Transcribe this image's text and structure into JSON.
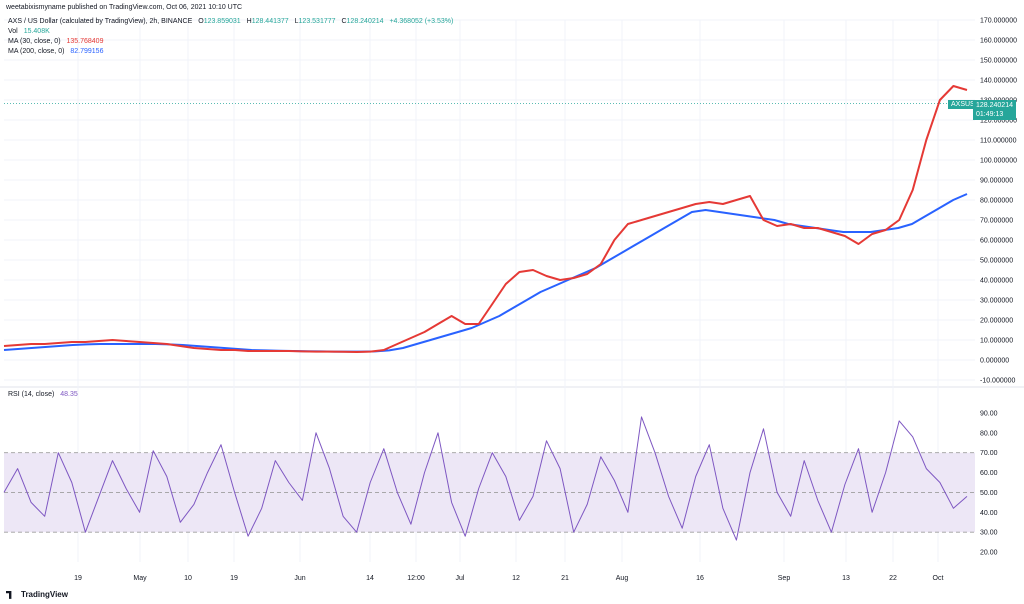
{
  "header": {
    "published": "weetabixismyname published on TradingView.com, Oct 06, 2021 10:10 UTC"
  },
  "legend": {
    "symbol": "AXS / US Dollar (calculated by TradingView), 2h, BINANCE",
    "o_label": "O",
    "o": "123.859031",
    "h_label": "H",
    "h": "128.441377",
    "l_label": "L",
    "l": "123.531777",
    "c_label": "C",
    "c": "128.240214",
    "change": "+4.368052 (+3.53%)",
    "vol_label": "Vol",
    "vol": "15.408K",
    "ma30_label": "MA (30, close, 0)",
    "ma30": "135.768409",
    "ma200_label": "MA (200, close, 0)",
    "ma200": "82.799156",
    "rsi_label": "RSI (14, close)",
    "rsi": "48.35"
  },
  "price_tag": {
    "symbol": "AXSUSD",
    "price": "128.240214",
    "countdown": "01:49:13"
  },
  "branding": {
    "logo": "TradingView"
  },
  "colors": {
    "up": "#26a69a",
    "down": "#ef5350",
    "ma30": "#e53935",
    "ma200": "#2962ff",
    "rsi": "#7e57c2",
    "rsi_band": "#ede7f6",
    "grid": "#f0f3fa"
  },
  "chart_data": [
    {
      "type": "line",
      "title": "AXS / US Dollar (calculated by TradingView), 2h, BINANCE",
      "y_ticks": [
        "170.000000",
        "160.000000",
        "150.000000",
        "140.000000",
        "130.000000",
        "120.000000",
        "110.000000",
        "100.000000",
        "90.000000",
        "80.000000",
        "70.000000",
        "60.000000",
        "50.000000",
        "40.000000",
        "30.000000",
        "20.000000",
        "10.000000",
        "0.000000",
        "-10.000000"
      ],
      "ylim": [
        -10,
        170
      ],
      "x_ticks": [
        "19",
        "May",
        "10",
        "19",
        "Jun",
        "14",
        "12:00",
        "Jul",
        "12",
        "21",
        "Aug",
        "16",
        "Sep",
        "13",
        "22",
        "Oct"
      ],
      "series": [
        {
          "name": "MA (30, close, 0)",
          "values": [
            7,
            7.5,
            8,
            8,
            8.5,
            9,
            9,
            9.5,
            10,
            9.5,
            9,
            8.5,
            8,
            7,
            6,
            5.5,
            5,
            5,
            4.5,
            4.5,
            4.5,
            4.5,
            4.3,
            4.2,
            4.2,
            4.1,
            4,
            4.2,
            5,
            8,
            11,
            14,
            18,
            22,
            18,
            18,
            28,
            38,
            44,
            45,
            42,
            40,
            41,
            43,
            48,
            60,
            68,
            70,
            72,
            74,
            76,
            78,
            79,
            78,
            80,
            82,
            70,
            67,
            68,
            66,
            66,
            64,
            62,
            58,
            63,
            65,
            70,
            85,
            110,
            130,
            137,
            135
          ]
        },
        {
          "name": "MA (200, close, 0)",
          "values": [
            5,
            5.5,
            6,
            6.5,
            7,
            7.5,
            7.8,
            8,
            8,
            8,
            8,
            8,
            7.8,
            7.5,
            7,
            6.5,
            6,
            5.5,
            5,
            4.8,
            4.6,
            4.5,
            4.4,
            4.3,
            4.2,
            4.2,
            4.2,
            4.3,
            4.8,
            6,
            8,
            10,
            12,
            14,
            16,
            19,
            22,
            26,
            30,
            34,
            37,
            40,
            43,
            46,
            50,
            54,
            58,
            62,
            66,
            70,
            74,
            75,
            74,
            73,
            72,
            71,
            70,
            68,
            67,
            66,
            65,
            64,
            64,
            64,
            65,
            66,
            68,
            72,
            76,
            80,
            83
          ]
        }
      ]
    },
    {
      "type": "line",
      "title": "RSI (14, close)",
      "y_ticks": [
        "90.00",
        "80.00",
        "70.00",
        "60.00",
        "50.00",
        "40.00",
        "30.00",
        "20.00"
      ],
      "ylim": [
        15,
        95
      ],
      "band": [
        30,
        70
      ],
      "series": [
        {
          "name": "RSI (14, close)",
          "values": [
            50,
            62,
            45,
            38,
            70,
            55,
            30,
            48,
            66,
            52,
            40,
            71,
            58,
            35,
            44,
            60,
            74,
            50,
            28,
            42,
            66,
            55,
            46,
            80,
            62,
            38,
            30,
            55,
            72,
            50,
            34,
            60,
            80,
            45,
            28,
            52,
            70,
            58,
            36,
            48,
            76,
            62,
            30,
            44,
            68,
            56,
            40,
            88,
            70,
            48,
            32,
            58,
            74,
            42,
            26,
            60,
            82,
            50,
            38,
            66,
            46,
            30,
            54,
            72,
            40,
            60,
            86,
            78,
            62,
            55,
            42,
            48
          ]
        }
      ]
    }
  ]
}
